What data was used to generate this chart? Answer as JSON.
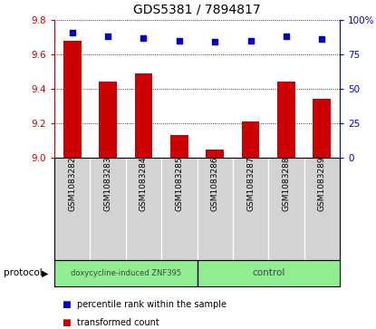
{
  "title": "GDS5381 / 7894817",
  "samples": [
    "GSM1083282",
    "GSM1083283",
    "GSM1083284",
    "GSM1083285",
    "GSM1083286",
    "GSM1083287",
    "GSM1083288",
    "GSM1083289"
  ],
  "transformed_count": [
    9.68,
    9.44,
    9.49,
    9.13,
    9.05,
    9.21,
    9.44,
    9.34
  ],
  "percentile_rank": [
    91,
    88,
    87,
    85,
    84,
    85,
    88,
    86
  ],
  "group1_label": "doxycycline-induced ZNF395",
  "group2_label": "control",
  "group_color": "#90EE90",
  "sample_bg_color": "#D3D3D3",
  "ylim_left": [
    9.0,
    9.8
  ],
  "ylim_right": [
    0,
    100
  ],
  "yticks_left": [
    9.0,
    9.2,
    9.4,
    9.6,
    9.8
  ],
  "yticks_right": [
    0,
    25,
    50,
    75,
    100
  ],
  "ytick_labels_right": [
    "0",
    "25",
    "50",
    "75",
    "100%"
  ],
  "bar_color": "#CC0000",
  "dot_color": "#0000CC",
  "left_tick_color": "#CC0000",
  "right_tick_color": "#0000CC",
  "protocol_label": "protocol",
  "legend_items": [
    {
      "label": "transformed count",
      "color": "#CC0000"
    },
    {
      "label": "percentile rank within the sample",
      "color": "#0000CC"
    }
  ],
  "n_group1": 4,
  "n_group2": 4
}
